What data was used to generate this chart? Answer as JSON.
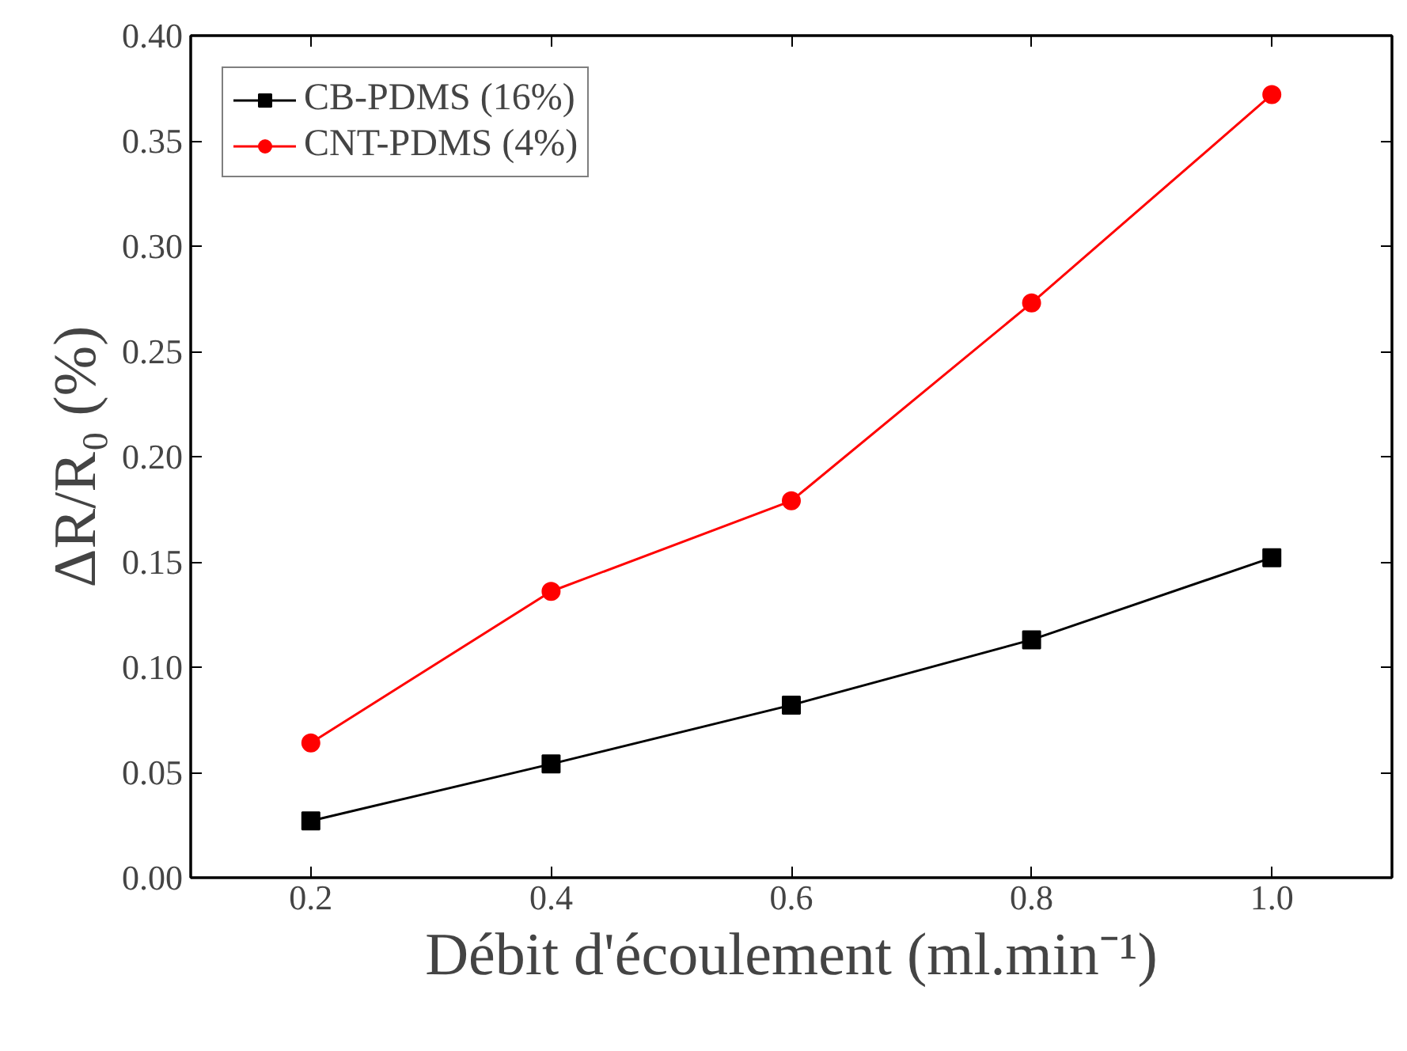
{
  "chart_data": {
    "type": "line",
    "xlabel": "Débit d'écoulement (ml.min⁻¹)",
    "ylabel": "ΔR/R₀ (%)",
    "x": [
      0.2,
      0.4,
      0.6,
      0.8,
      1.0
    ],
    "series": [
      {
        "name": "CB-PDMS (16%)",
        "color": "#000000",
        "marker": "square",
        "values": [
          0.027,
          0.054,
          0.082,
          0.113,
          0.152
        ]
      },
      {
        "name": "CNT-PDMS (4%)",
        "color": "#ff0000",
        "marker": "circle",
        "values": [
          0.064,
          0.136,
          0.179,
          0.273,
          0.372
        ]
      }
    ],
    "xlim": [
      0.1,
      1.1
    ],
    "ylim": [
      0,
      0.4
    ],
    "xticks": [
      0.2,
      0.4,
      0.6,
      0.8,
      {
        "value": 1.0,
        "label": "1.0"
      }
    ],
    "yticks": [
      {
        "value": 0,
        "label": "0.00"
      },
      {
        "value": 0.05,
        "label": "0.05"
      },
      {
        "value": 0.1,
        "label": "0.10"
      },
      {
        "value": 0.15,
        "label": "0.15"
      },
      {
        "value": 0.2,
        "label": "0.20"
      },
      {
        "value": 0.25,
        "label": "0.25"
      },
      {
        "value": 0.3,
        "label": "0.30"
      },
      {
        "value": 0.35,
        "label": "0.35"
      },
      {
        "value": 0.4,
        "label": "0.40"
      }
    ],
    "grid": false,
    "legend": "top left",
    "line_style": "solid"
  }
}
